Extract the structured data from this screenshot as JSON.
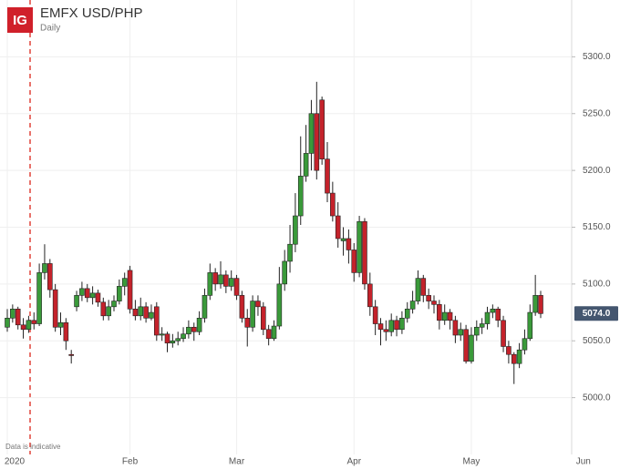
{
  "chart_data": {
    "type": "candlestick",
    "logo": "IG",
    "title": "EMFX USD/PHP",
    "subtitle": "Daily",
    "note": "Data is indicative",
    "last_value_label": "5074.0",
    "up_color": "#3a9a3a",
    "down_color": "#c4222b",
    "grid": true,
    "ylim": [
      4950,
      5350
    ],
    "yticks": [
      {
        "value": 5000,
        "label": "5000.0"
      },
      {
        "value": 5050,
        "label": "5050.0"
      },
      {
        "value": 5100,
        "label": "5100.0"
      },
      {
        "value": 5150,
        "label": "5150.0"
      },
      {
        "value": 5200,
        "label": "5200.0"
      },
      {
        "value": 5250,
        "label": "5250.0"
      },
      {
        "value": 5300,
        "label": "5300.0"
      }
    ],
    "categories": [
      "2020",
      null,
      null,
      null,
      null,
      null,
      null,
      null,
      null,
      null,
      null,
      null,
      null,
      null,
      null,
      null,
      null,
      null,
      null,
      null,
      null,
      null,
      null,
      "Feb",
      null,
      null,
      null,
      null,
      null,
      null,
      null,
      null,
      null,
      null,
      null,
      null,
      null,
      null,
      null,
      null,
      null,
      null,
      null,
      "Mar",
      null,
      null,
      null,
      null,
      null,
      null,
      null,
      null,
      null,
      null,
      null,
      null,
      null,
      null,
      null,
      null,
      null,
      null,
      null,
      null,
      null,
      "Apr",
      null,
      null,
      null,
      null,
      null,
      null,
      null,
      null,
      null,
      null,
      null,
      null,
      null,
      null,
      null,
      null,
      null,
      null,
      null,
      null,
      null,
      "May",
      null,
      null,
      null,
      null,
      null,
      null,
      null,
      null,
      null,
      null,
      null,
      null,
      null,
      null,
      null,
      null,
      null,
      null,
      null,
      null,
      "Jun"
    ],
    "ohlc": [
      [
        5062,
        5078,
        5058,
        5070
      ],
      [
        5070,
        5082,
        5066,
        5078
      ],
      [
        5078,
        5080,
        5060,
        5064
      ],
      [
        5064,
        5070,
        5052,
        5060
      ],
      [
        5060,
        5072,
        5057,
        5068
      ],
      [
        5068,
        5075,
        5060,
        5065
      ],
      [
        5065,
        5118,
        5063,
        5110
      ],
      [
        5110,
        5135,
        5104,
        5118
      ],
      [
        5118,
        5122,
        5088,
        5095
      ],
      [
        5095,
        5100,
        5058,
        5062
      ],
      [
        5062,
        5075,
        5055,
        5066
      ],
      [
        5066,
        5070,
        5042,
        5050
      ],
      [
        5038,
        5042,
        5030,
        5037
      ],
      [
        5080,
        5094,
        5076,
        5090
      ],
      [
        5090,
        5102,
        5085,
        5096
      ],
      [
        5096,
        5100,
        5084,
        5088
      ],
      [
        5088,
        5098,
        5082,
        5092
      ],
      [
        5092,
        5095,
        5080,
        5084
      ],
      [
        5084,
        5088,
        5068,
        5072
      ],
      [
        5072,
        5086,
        5068,
        5080
      ],
      [
        5080,
        5090,
        5076,
        5085
      ],
      [
        5085,
        5104,
        5082,
        5098
      ],
      [
        5098,
        5110,
        5090,
        5105
      ],
      [
        5112,
        5116,
        5074,
        5078
      ],
      [
        5078,
        5086,
        5068,
        5072
      ],
      [
        5072,
        5088,
        5068,
        5080
      ],
      [
        5080,
        5084,
        5066,
        5070
      ],
      [
        5070,
        5082,
        5068,
        5075
      ],
      [
        5080,
        5084,
        5050,
        5055
      ],
      [
        5055,
        5062,
        5050,
        5056
      ],
      [
        5056,
        5058,
        5040,
        5048
      ],
      [
        5048,
        5056,
        5044,
        5050
      ],
      [
        5050,
        5058,
        5046,
        5052
      ],
      [
        5052,
        5062,
        5049,
        5056
      ],
      [
        5056,
        5068,
        5052,
        5062
      ],
      [
        5062,
        5066,
        5050,
        5058
      ],
      [
        5058,
        5076,
        5055,
        5070
      ],
      [
        5070,
        5096,
        5066,
        5090
      ],
      [
        5090,
        5118,
        5086,
        5110
      ],
      [
        5110,
        5114,
        5094,
        5100
      ],
      [
        5100,
        5120,
        5096,
        5108
      ],
      [
        5108,
        5112,
        5092,
        5098
      ],
      [
        5098,
        5112,
        5094,
        5105
      ],
      [
        5105,
        5108,
        5086,
        5090
      ],
      [
        5090,
        5094,
        5066,
        5070
      ],
      [
        5070,
        5078,
        5045,
        5062
      ],
      [
        5062,
        5090,
        5058,
        5085
      ],
      [
        5085,
        5090,
        5072,
        5080
      ],
      [
        5080,
        5084,
        5055,
        5060
      ],
      [
        5060,
        5064,
        5046,
        5052
      ],
      [
        5052,
        5068,
        5050,
        5063
      ],
      [
        5063,
        5115,
        5060,
        5100
      ],
      [
        5100,
        5130,
        5094,
        5120
      ],
      [
        5120,
        5152,
        5110,
        5135
      ],
      [
        5135,
        5180,
        5128,
        5160
      ],
      [
        5160,
        5230,
        5152,
        5195
      ],
      [
        5195,
        5240,
        5190,
        5215
      ],
      [
        5215,
        5262,
        5200,
        5250
      ],
      [
        5250,
        5278,
        5192,
        5200
      ],
      [
        5262,
        5265,
        5205,
        5210
      ],
      [
        5210,
        5225,
        5172,
        5180
      ],
      [
        5180,
        5190,
        5155,
        5160
      ],
      [
        5160,
        5172,
        5132,
        5140
      ],
      [
        5138,
        5150,
        5125,
        5140
      ],
      [
        5140,
        5148,
        5118,
        5130
      ],
      [
        5130,
        5136,
        5102,
        5110
      ],
      [
        5110,
        5160,
        5106,
        5155
      ],
      [
        5155,
        5158,
        5095,
        5100
      ],
      [
        5100,
        5110,
        5072,
        5080
      ],
      [
        5080,
        5086,
        5055,
        5065
      ],
      [
        5065,
        5070,
        5046,
        5060
      ],
      [
        5060,
        5068,
        5050,
        5058
      ],
      [
        5058,
        5074,
        5054,
        5068
      ],
      [
        5068,
        5072,
        5054,
        5060
      ],
      [
        5060,
        5076,
        5056,
        5070
      ],
      [
        5070,
        5084,
        5066,
        5078
      ],
      [
        5078,
        5094,
        5074,
        5085
      ],
      [
        5085,
        5112,
        5082,
        5105
      ],
      [
        5105,
        5108,
        5084,
        5090
      ],
      [
        5090,
        5096,
        5078,
        5085
      ],
      [
        5085,
        5090,
        5074,
        5082
      ],
      [
        5082,
        5086,
        5060,
        5068
      ],
      [
        5068,
        5082,
        5064,
        5075
      ],
      [
        5075,
        5078,
        5060,
        5068
      ],
      [
        5068,
        5072,
        5048,
        5055
      ],
      [
        5055,
        5066,
        5050,
        5060
      ],
      [
        5060,
        5064,
        5030,
        5032
      ],
      [
        5032,
        5062,
        5030,
        5055
      ],
      [
        5055,
        5068,
        5050,
        5062
      ],
      [
        5062,
        5070,
        5056,
        5065
      ],
      [
        5065,
        5080,
        5060,
        5075
      ],
      [
        5075,
        5082,
        5070,
        5078
      ],
      [
        5078,
        5080,
        5062,
        5068
      ],
      [
        5068,
        5072,
        5040,
        5045
      ],
      [
        5045,
        5050,
        5030,
        5038
      ],
      [
        5038,
        5040,
        5012,
        5030
      ],
      [
        5030,
        5048,
        5026,
        5042
      ],
      [
        5042,
        5060,
        5038,
        5052
      ],
      [
        5052,
        5082,
        5050,
        5075
      ],
      [
        5075,
        5108,
        5072,
        5090
      ],
      [
        5090,
        5094,
        5070,
        5074
      ],
      null,
      null,
      null,
      null,
      null,
      null,
      null,
      null
    ]
  }
}
